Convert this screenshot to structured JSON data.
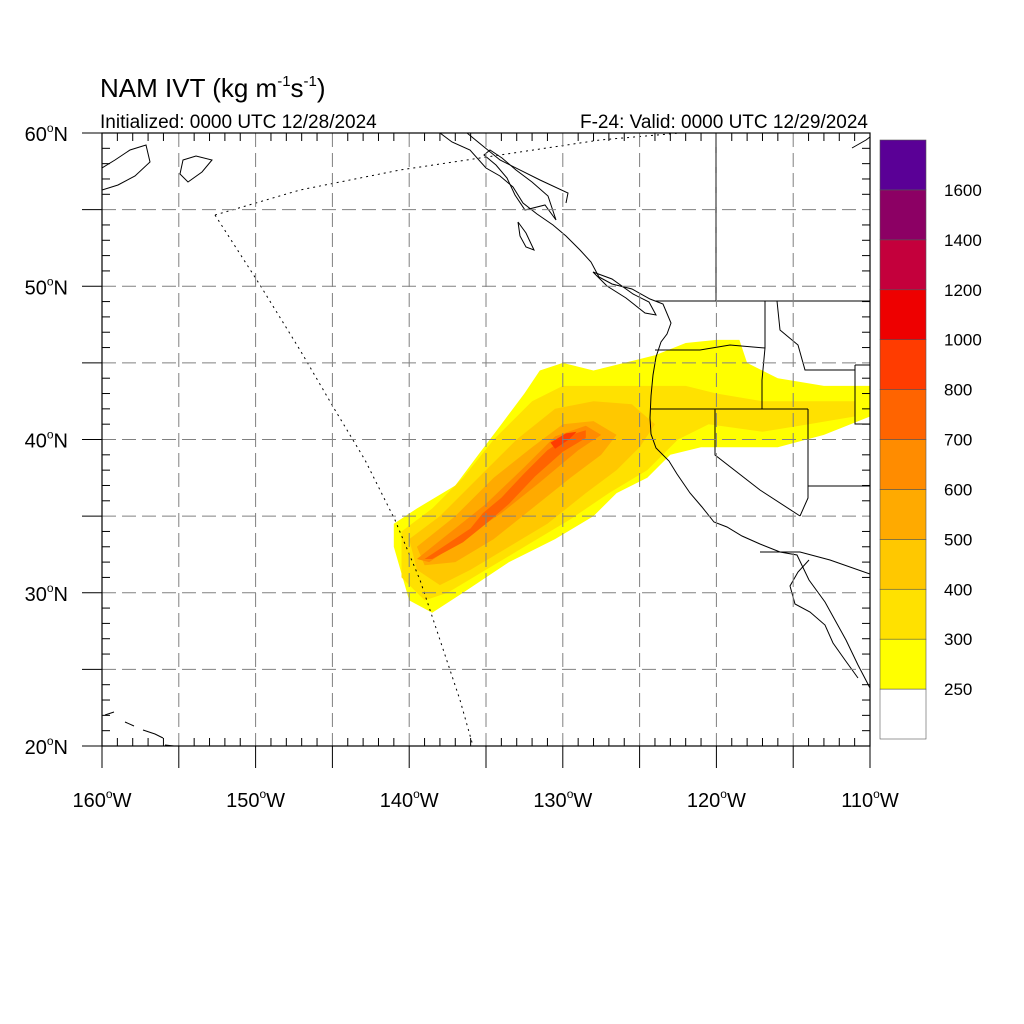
{
  "title": {
    "main": "NAM IVT (kg m",
    "sup1": "-1",
    "mid": "s",
    "sup2": "-1",
    "end": ")",
    "initialized": "Initialized: 0000 UTC 12/28/2024",
    "valid": "F-24: Valid: 0000 UTC 12/29/2024"
  },
  "axes": {
    "lon_range": [
      -160,
      -110
    ],
    "lat_range": [
      20,
      60
    ],
    "lat_labels": [
      {
        "value": 60,
        "num": "60",
        "hem": "N"
      },
      {
        "value": 50,
        "num": "50",
        "hem": "N"
      },
      {
        "value": 40,
        "num": "40",
        "hem": "N"
      },
      {
        "value": 30,
        "num": "30",
        "hem": "N"
      },
      {
        "value": 20,
        "num": "20",
        "hem": "N"
      }
    ],
    "lon_labels": [
      {
        "value": -160,
        "num": "160",
        "hem": "W"
      },
      {
        "value": -150,
        "num": "150",
        "hem": "W"
      },
      {
        "value": -140,
        "num": "140",
        "hem": "W"
      },
      {
        "value": -130,
        "num": "130",
        "hem": "W"
      },
      {
        "value": -120,
        "num": "120",
        "hem": "W"
      },
      {
        "value": -110,
        "num": "110",
        "hem": "W"
      }
    ],
    "grid_spacing_deg": 5,
    "grid": true
  },
  "colorbar": {
    "colors": [
      "#ffffff",
      "#ffff00",
      "#ffe100",
      "#ffc800",
      "#ffaa00",
      "#ff8c00",
      "#ff6400",
      "#ff3c00",
      "#ee0000",
      "#c4003c",
      "#8c0064",
      "#5a0096"
    ],
    "labels": [
      "250",
      "300",
      "400",
      "500",
      "600",
      "700",
      "800",
      "1000",
      "1200",
      "1400",
      "1600"
    ]
  },
  "chart_data": {
    "type": "heatmap",
    "title": "NAM IVT (kg m-1s-1)",
    "subtitle_left": "Initialized: 0000 UTC 12/28/2024",
    "subtitle_right": "F-24: Valid: 0000 UTC 12/29/2024",
    "variable_units": "kg m-1 s-1",
    "x_range": [
      -160,
      -110
    ],
    "y_range": [
      20,
      60
    ],
    "levels": [
      250,
      300,
      400,
      500,
      600,
      700,
      800,
      1000,
      1200,
      1400,
      1600
    ],
    "ivt_regions": [
      {
        "level": 250,
        "polygon": [
          [
            -141,
            34.5
          ],
          [
            -139.5,
            35.5
          ],
          [
            -137,
            37
          ],
          [
            -135.5,
            39
          ],
          [
            -134,
            41
          ],
          [
            -132.5,
            43
          ],
          [
            -131.5,
            44.5
          ],
          [
            -130,
            45
          ],
          [
            -128,
            44.5
          ],
          [
            -126,
            45
          ],
          [
            -124,
            45.5
          ],
          [
            -122,
            46.3
          ],
          [
            -120,
            46.5
          ],
          [
            -118.5,
            46.5
          ],
          [
            -118,
            45
          ],
          [
            -116,
            44
          ],
          [
            -113,
            43.5
          ],
          [
            -110,
            43.5
          ],
          [
            -110,
            41.5
          ],
          [
            -113,
            40.3
          ],
          [
            -116,
            39.5
          ],
          [
            -119,
            39.5
          ],
          [
            -121,
            39.5
          ],
          [
            -123,
            39
          ],
          [
            -124.5,
            37.5
          ],
          [
            -126.5,
            36.5
          ],
          [
            -128,
            35
          ],
          [
            -130.5,
            33.5
          ],
          [
            -133.5,
            32
          ],
          [
            -136.5,
            30
          ],
          [
            -138.5,
            28.7
          ],
          [
            -140,
            29.5
          ],
          [
            -141,
            33
          ]
        ]
      },
      {
        "level": 300,
        "polygon": [
          [
            -140.5,
            34
          ],
          [
            -138.5,
            35.5
          ],
          [
            -136.5,
            37.5
          ],
          [
            -134.5,
            40
          ],
          [
            -132,
            42.5
          ],
          [
            -130,
            43.5
          ],
          [
            -127.5,
            43.5
          ],
          [
            -125,
            43.5
          ],
          [
            -122,
            43.5
          ],
          [
            -120,
            43
          ],
          [
            -117,
            42.5
          ],
          [
            -113,
            42.5
          ],
          [
            -111,
            42.5
          ],
          [
            -111,
            41.5
          ],
          [
            -114,
            41
          ],
          [
            -117,
            40.5
          ],
          [
            -120.5,
            41
          ],
          [
            -122.5,
            40
          ],
          [
            -124.5,
            38
          ],
          [
            -127,
            36.5
          ],
          [
            -129.5,
            34.8
          ],
          [
            -132.5,
            33
          ],
          [
            -135,
            31.5
          ],
          [
            -137.5,
            30
          ],
          [
            -139,
            29.5
          ],
          [
            -140.5,
            31
          ]
        ]
      },
      {
        "level": 400,
        "polygon": [
          [
            -140,
            33.5
          ],
          [
            -138,
            35
          ],
          [
            -135.5,
            37.5
          ],
          [
            -133,
            40
          ],
          [
            -130.5,
            42
          ],
          [
            -128,
            42.5
          ],
          [
            -125.5,
            42.3
          ],
          [
            -124,
            41
          ],
          [
            -125,
            39.5
          ],
          [
            -126.5,
            38
          ],
          [
            -128.5,
            36.5
          ],
          [
            -131,
            34.5
          ],
          [
            -133.5,
            33
          ],
          [
            -136,
            31.5
          ],
          [
            -138,
            30.5
          ],
          [
            -139.5,
            31.5
          ]
        ]
      },
      {
        "level": 500,
        "polygon": [
          [
            -139.5,
            33
          ],
          [
            -137,
            35
          ],
          [
            -134.5,
            37.5
          ],
          [
            -132,
            39.5
          ],
          [
            -130,
            41
          ],
          [
            -128,
            41.2
          ],
          [
            -126.5,
            40.3
          ],
          [
            -127.5,
            39
          ],
          [
            -129.5,
            37.5
          ],
          [
            -132,
            35.5
          ],
          [
            -134.5,
            33.5
          ],
          [
            -137,
            32
          ],
          [
            -139,
            31.8
          ]
        ]
      },
      {
        "level": 600,
        "polygon": [
          [
            -139.5,
            32.2
          ],
          [
            -137.5,
            33.8
          ],
          [
            -135,
            35.8
          ],
          [
            -132.5,
            38.2
          ],
          [
            -130.5,
            40.2
          ],
          [
            -128.5,
            40.9
          ],
          [
            -127.5,
            40.3
          ],
          [
            -129,
            39.3
          ],
          [
            -131.5,
            37.2
          ],
          [
            -134,
            35.2
          ],
          [
            -136.5,
            33.5
          ],
          [
            -138.7,
            32
          ]
        ]
      },
      {
        "level": 700,
        "polygon": [
          [
            -139,
            32.2
          ],
          [
            -137.5,
            33.2
          ],
          [
            -136,
            34.2
          ],
          [
            -135.2,
            35.2
          ],
          [
            -134,
            36.2
          ],
          [
            -132.5,
            37.8
          ],
          [
            -131,
            39.3
          ],
          [
            -129.5,
            40.3
          ],
          [
            -128.5,
            40.6
          ],
          [
            -128.5,
            40.1
          ],
          [
            -130,
            39.2
          ],
          [
            -131.8,
            37.6
          ],
          [
            -133.5,
            35.8
          ],
          [
            -135,
            34.5
          ],
          [
            -136.5,
            33.3
          ],
          [
            -138.5,
            32.2
          ]
        ]
      },
      {
        "level": 800,
        "polygon": [
          [
            -130.8,
            39.8
          ],
          [
            -129.8,
            40.4
          ],
          [
            -129.1,
            40.5
          ],
          [
            -129.6,
            40
          ],
          [
            -130.5,
            39.4
          ]
        ]
      }
    ],
    "annotations": [
      "dotted boundary line from 153W 55N to 136W 20N",
      "dotted line from 153W 55N to 127W 60N"
    ]
  }
}
